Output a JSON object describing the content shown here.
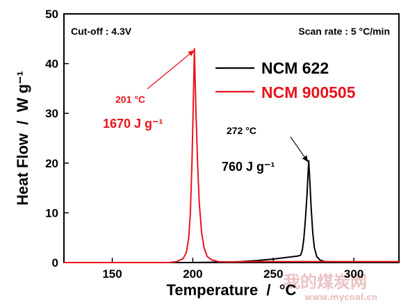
{
  "chart_data": {
    "type": "line",
    "xlabel": "Temperature  /  °C",
    "ylabel": "Heat Flow  /  W g⁻¹",
    "xlim": [
      120,
      328
    ],
    "ylim": [
      0,
      50
    ],
    "xticks": [
      150,
      200,
      250,
      300
    ],
    "yticks": [
      0,
      10,
      20,
      30,
      40,
      50
    ],
    "notes": {
      "cutoff": "Cut-off : 4.3V",
      "scan_rate": "Scan rate : 5 °C/min"
    },
    "legend_position": "top-right",
    "series": [
      {
        "name": "NCM 622",
        "color": "#000000",
        "points": [
          [
            120,
            0.0
          ],
          [
            170,
            0.0
          ],
          [
            200,
            0.0
          ],
          [
            220,
            0.1
          ],
          [
            230,
            0.2
          ],
          [
            240,
            0.4
          ],
          [
            250,
            0.7
          ],
          [
            260,
            1.1
          ],
          [
            265,
            1.3
          ],
          [
            267,
            1.5
          ],
          [
            268,
            2.5
          ],
          [
            269,
            5.0
          ],
          [
            270,
            9.0
          ],
          [
            271,
            14.0
          ],
          [
            271.6,
            18.0
          ],
          [
            272,
            20.5
          ],
          [
            272.6,
            17.0
          ],
          [
            273.5,
            11.0
          ],
          [
            274.5,
            6.0
          ],
          [
            275.5,
            3.0
          ],
          [
            277,
            1.2
          ],
          [
            279,
            0.5
          ],
          [
            282,
            0.2
          ],
          [
            290,
            0.1
          ],
          [
            300,
            0.0
          ],
          [
            328,
            0.0
          ]
        ]
      },
      {
        "name": "NCM 900505",
        "color": "#e8141c",
        "points": [
          [
            120,
            0.0
          ],
          [
            185,
            0.0
          ],
          [
            190,
            0.2
          ],
          [
            194,
            0.8
          ],
          [
            196,
            2.0
          ],
          [
            197.5,
            5.0
          ],
          [
            198.5,
            10.0
          ],
          [
            199.5,
            20.0
          ],
          [
            200.2,
            30.0
          ],
          [
            200.7,
            38.0
          ],
          [
            201,
            43.0
          ],
          [
            201.4,
            38.0
          ],
          [
            202,
            30.0
          ],
          [
            203,
            20.0
          ],
          [
            204,
            12.0
          ],
          [
            205.5,
            6.0
          ],
          [
            207,
            3.0
          ],
          [
            209,
            1.2
          ],
          [
            212,
            0.5
          ],
          [
            216,
            0.2
          ],
          [
            222,
            0.1
          ],
          [
            235,
            0.2
          ],
          [
            250,
            0.2
          ],
          [
            328,
            0.2
          ]
        ]
      }
    ],
    "annotations": [
      {
        "temp_label": "201 °C",
        "enthalpy_label": "1670 J g⁻¹",
        "color": "#e8141c",
        "arrow_to": [
          201,
          43
        ]
      },
      {
        "temp_label": "272 °C",
        "enthalpy_label": "760 J g⁻¹",
        "color": "#000000",
        "arrow_to": [
          272,
          20.5
        ]
      }
    ]
  },
  "watermark": {
    "text": "我的煤炭网",
    "url": "www.mycoal.cn"
  }
}
